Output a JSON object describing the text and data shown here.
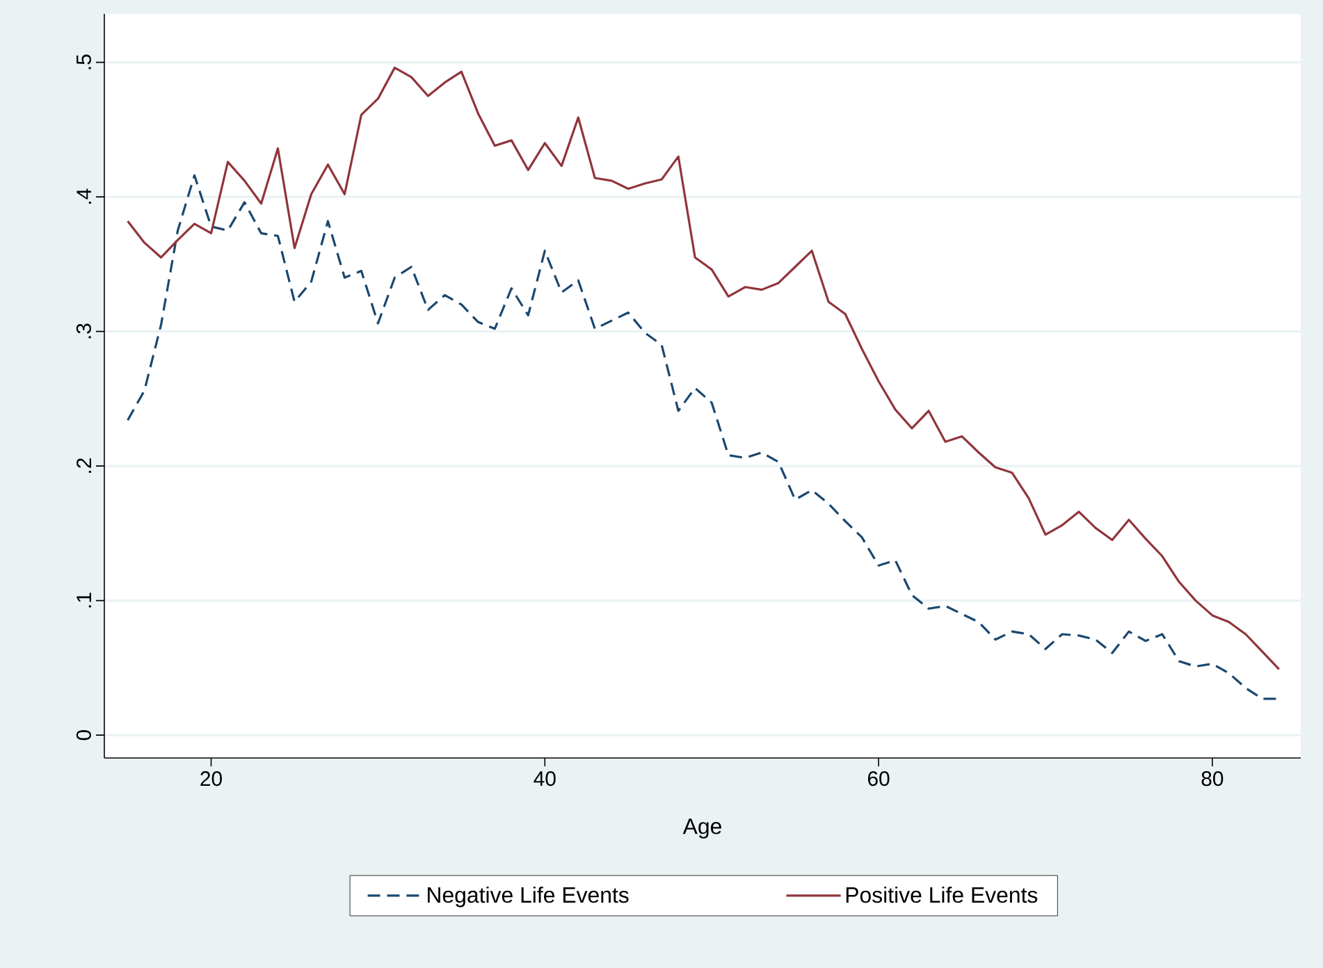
{
  "chart_data": {
    "type": "line",
    "xlabel": "Age",
    "x": [
      15,
      16,
      17,
      18,
      19,
      20,
      21,
      22,
      23,
      24,
      25,
      26,
      27,
      28,
      29,
      30,
      31,
      32,
      33,
      34,
      35,
      36,
      37,
      38,
      39,
      40,
      41,
      42,
      43,
      44,
      45,
      46,
      47,
      48,
      49,
      50,
      51,
      52,
      53,
      54,
      55,
      56,
      57,
      58,
      59,
      60,
      61,
      62,
      63,
      64,
      65,
      66,
      67,
      68,
      69,
      70,
      71,
      72,
      73,
      74,
      75,
      76,
      77,
      78,
      79,
      80,
      81,
      82,
      83,
      84
    ],
    "series": [
      {
        "name": "Negative Life Events",
        "color": "#1a476f",
        "line_style": "dashed",
        "values": [
          0.234,
          0.256,
          0.305,
          0.375,
          0.416,
          0.378,
          0.375,
          0.396,
          0.373,
          0.371,
          0.322,
          0.337,
          0.382,
          0.34,
          0.345,
          0.306,
          0.34,
          0.348,
          0.316,
          0.327,
          0.32,
          0.307,
          0.302,
          0.332,
          0.312,
          0.36,
          0.329,
          0.338,
          0.302,
          0.308,
          0.314,
          0.299,
          0.29,
          0.241,
          0.258,
          0.247,
          0.208,
          0.206,
          0.21,
          0.203,
          0.175,
          0.182,
          0.172,
          0.159,
          0.147,
          0.126,
          0.13,
          0.104,
          0.094,
          0.096,
          0.09,
          0.084,
          0.071,
          0.077,
          0.075,
          0.064,
          0.075,
          0.074,
          0.071,
          0.061,
          0.077,
          0.07,
          0.075,
          0.055,
          0.051,
          0.053,
          0.046,
          0.035,
          0.027,
          0.027
        ]
      },
      {
        "name": "Positive Life Events",
        "color": "#90353b",
        "line_style": "solid",
        "values": [
          0.382,
          0.366,
          0.355,
          0.368,
          0.38,
          0.373,
          0.426,
          0.412,
          0.395,
          0.436,
          0.362,
          0.402,
          0.424,
          0.402,
          0.461,
          0.473,
          0.496,
          0.489,
          0.475,
          0.485,
          0.493,
          0.462,
          0.438,
          0.442,
          0.42,
          0.44,
          0.423,
          0.459,
          0.414,
          0.412,
          0.406,
          0.41,
          0.413,
          0.43,
          0.355,
          0.346,
          0.326,
          0.333,
          0.331,
          0.336,
          0.348,
          0.36,
          0.322,
          0.313,
          0.287,
          0.263,
          0.242,
          0.228,
          0.241,
          0.218,
          0.222,
          0.21,
          0.199,
          0.195,
          0.176,
          0.149,
          0.156,
          0.166,
          0.154,
          0.145,
          0.16,
          0.146,
          0.133,
          0.114,
          0.1,
          0.089,
          0.084,
          0.075,
          0.062,
          0.049
        ]
      }
    ],
    "xlim": [
      13.6,
      85.3
    ],
    "ylim": [
      -0.017,
      0.536
    ],
    "xticks": [
      20,
      40,
      60,
      80
    ],
    "yticks": [
      {
        "value": 0,
        "label": "0"
      },
      {
        "value": 0.1,
        "label": ".1"
      },
      {
        "value": 0.2,
        "label": ".2"
      },
      {
        "value": 0.3,
        "label": ".3"
      },
      {
        "value": 0.4,
        "label": ".4"
      },
      {
        "value": 0.5,
        "label": ".5"
      }
    ],
    "grid": "y",
    "legend": "bottom",
    "marker": "none"
  }
}
